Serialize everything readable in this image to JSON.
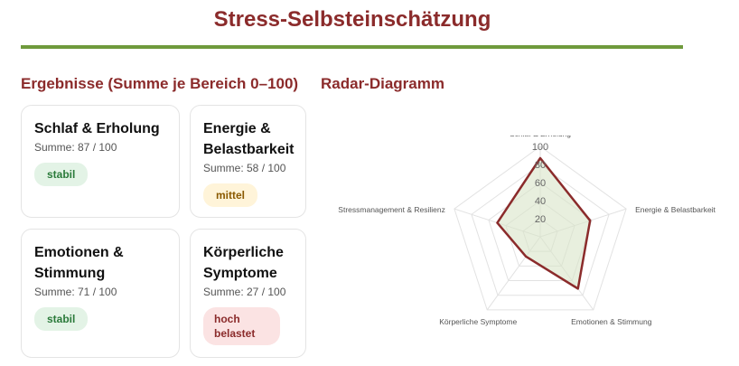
{
  "page": {
    "title": "Stress-Selbsteinschätzung"
  },
  "results": {
    "heading": "Ergebnisse (Summe je Bereich 0–100)",
    "cards": [
      {
        "title": "Schlaf & Erholung",
        "sum": "Summe: 87 / 100",
        "badge": "stabil"
      },
      {
        "title": "Energie & Belastbarkeit",
        "sum": "Summe: 58 / 100",
        "badge": "mittel"
      },
      {
        "title": "Emotionen & Stimmung",
        "sum": "Summe: 71 / 100",
        "badge": "stabil"
      },
      {
        "title": "Körperliche Symptome",
        "sum": "Summe: 27 / 100",
        "badge": "hoch belastet"
      }
    ]
  },
  "radar": {
    "heading": "Radar-Diagramm"
  },
  "chart_data": {
    "type": "radar",
    "categories": [
      "Schlaf & Erholung",
      "Energie & Belastbarkeit",
      "Emotionen & Stimmung",
      "Körperliche Symptome",
      "Stressmanagement & Resilienz"
    ],
    "values": [
      87,
      58,
      71,
      27,
      50
    ],
    "ticks": [
      "20",
      "40",
      "60",
      "80",
      "100"
    ],
    "range": [
      0,
      100
    ],
    "colors": {
      "line": "#8b2b2b",
      "fill": "#d9e4c8",
      "grid": "#e2e2e2"
    }
  }
}
